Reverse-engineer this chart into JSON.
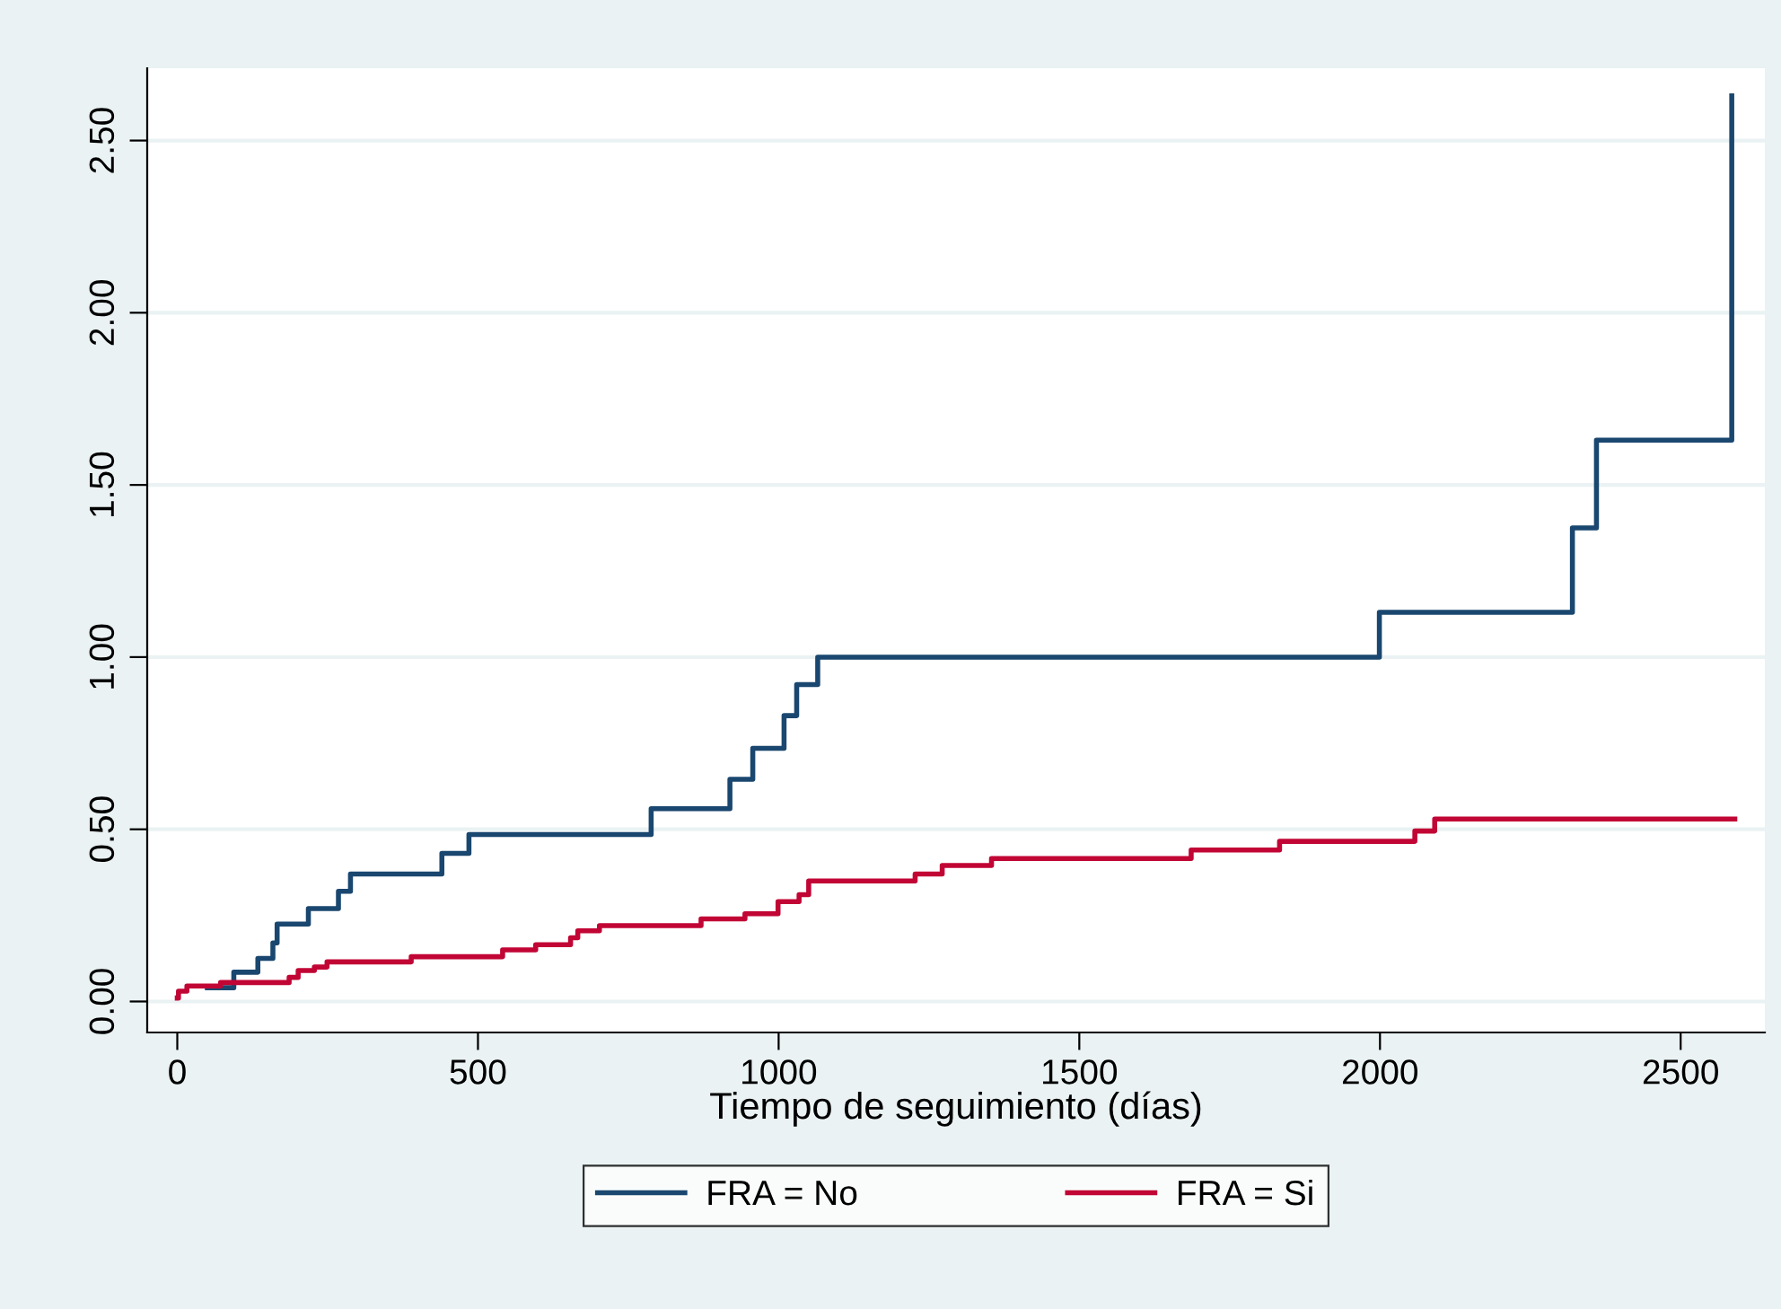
{
  "chart_data": {
    "type": "step",
    "xlabel": "Tiempo de seguimiento (días)",
    "xlim": [
      -50,
      2640
    ],
    "ylim": [
      -0.09,
      2.71
    ],
    "xticks": [
      0,
      500,
      1000,
      1500,
      2000,
      2500
    ],
    "yticks": [
      {
        "value": 0,
        "label": "0.00"
      },
      {
        "value": 0.5,
        "label": "0.50"
      },
      {
        "value": 1,
        "label": "1.00"
      },
      {
        "value": 1.5,
        "label": "1.50"
      },
      {
        "value": 2,
        "label": "2.00"
      },
      {
        "value": 2.5,
        "label": "2.50"
      }
    ],
    "grid": "y",
    "legend": "bottom",
    "series": [
      {
        "name": "FRA = No",
        "color": "#1a476f",
        "x": [
          50,
          94,
          134,
          159,
          166,
          218,
          268,
          288,
          440,
          485,
          788,
          919,
          957,
          1009,
          1030,
          1065,
          1999,
          2320,
          2360,
          2585
        ],
        "values": [
          0.04,
          0.085,
          0.125,
          0.17,
          0.225,
          0.27,
          0.32,
          0.37,
          0.43,
          0.485,
          0.56,
          0.645,
          0.735,
          0.83,
          0.92,
          1.0,
          1.13,
          1.375,
          1.63,
          2.63
        ]
      },
      {
        "name": "FRA = Si",
        "color": "#c10534",
        "x": [
          0,
          2,
          16,
          72,
          186,
          201,
          228,
          249,
          389,
          541,
          596,
          654,
          666,
          702,
          871,
          944,
          999,
          1034,
          1050,
          1227,
          1272,
          1354,
          1686,
          1833,
          2058,
          2091,
          2590
        ],
        "values": [
          0.01,
          0.03,
          0.045,
          0.055,
          0.07,
          0.09,
          0.1,
          0.115,
          0.13,
          0.15,
          0.165,
          0.185,
          0.205,
          0.22,
          0.24,
          0.255,
          0.29,
          0.31,
          0.35,
          0.37,
          0.395,
          0.415,
          0.44,
          0.465,
          0.495,
          0.53,
          0.53
        ]
      }
    ]
  }
}
